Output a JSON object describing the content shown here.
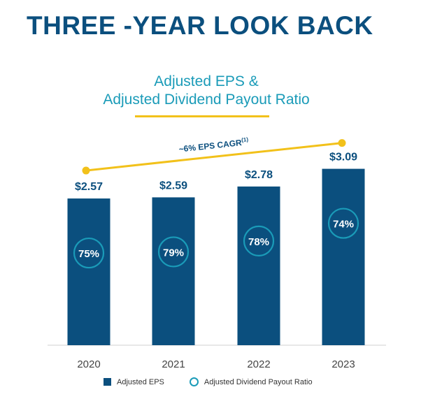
{
  "page": {
    "title": "THREE -YEAR LOOK BACK"
  },
  "chart_data": {
    "type": "bar",
    "title_line1": "Adjusted EPS &",
    "title_line2": "Adjusted Dividend Payout Ratio",
    "categories": [
      "2020",
      "2021",
      "2022",
      "2023"
    ],
    "series": [
      {
        "name": "Adjusted EPS",
        "values": [
          2.57,
          2.59,
          2.78,
          3.09
        ],
        "labels": [
          "$2.57",
          "$2.59",
          "$2.78",
          "$3.09"
        ],
        "color": "#0b4f7e"
      },
      {
        "name": "Adjusted Dividend Payout Ratio",
        "values": [
          75,
          79,
          78,
          74
        ],
        "labels": [
          "75%",
          "79%",
          "78%",
          "74%"
        ],
        "color": "#1a9bb8"
      }
    ],
    "trend": {
      "label": "~6% EPS CAGR",
      "superscript": "(1)",
      "color": "#f2c11a"
    },
    "ylim": [
      0,
      3.55
    ],
    "grid": false,
    "legend": "bottom-center"
  }
}
